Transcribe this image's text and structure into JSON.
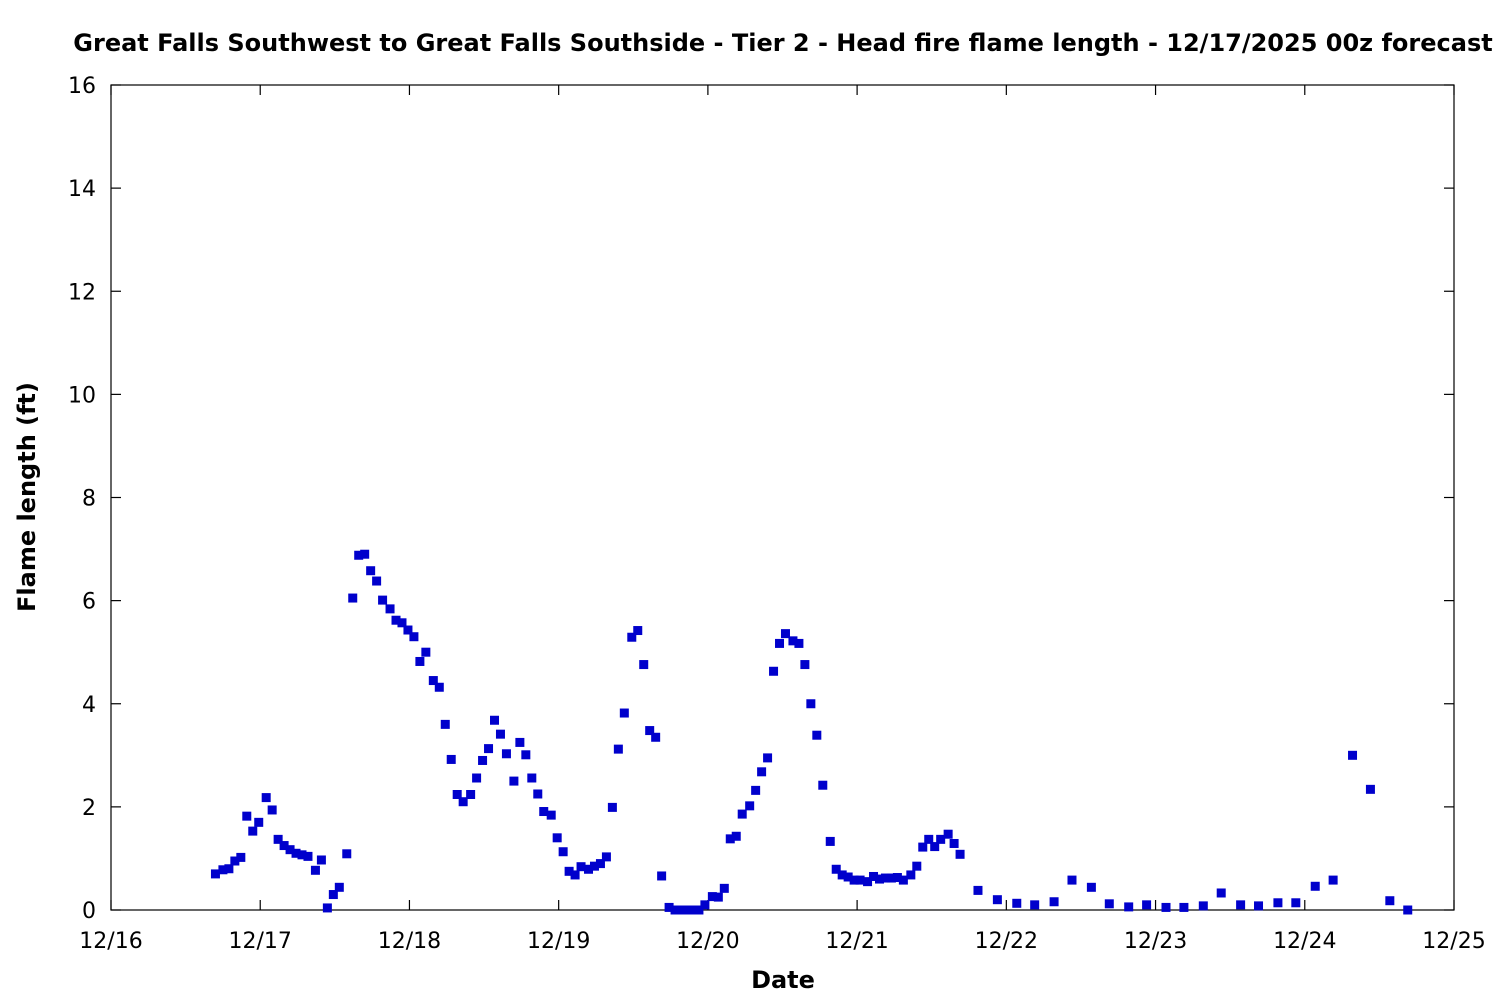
{
  "chart_data": {
    "type": "scatter",
    "title": "Great Falls Southwest to Great Falls Southside - Tier 2 - Head fire flame length - 12/17/2025 00z forecast",
    "xlabel": "Date",
    "ylabel": "Flame length (ft)",
    "xlim": [
      16,
      25
    ],
    "ylim": [
      0,
      16
    ],
    "x_ticks": [
      16,
      17,
      18,
      19,
      20,
      21,
      22,
      23,
      24,
      25
    ],
    "x_tick_labels": [
      "12/16",
      "12/17",
      "12/18",
      "12/19",
      "12/20",
      "12/21",
      "12/22",
      "12/23",
      "12/24",
      "12/25"
    ],
    "y_ticks": [
      0,
      2,
      4,
      6,
      8,
      10,
      12,
      14,
      16
    ],
    "y_tick_labels": [
      "0",
      "2",
      "4",
      "6",
      "8",
      "10",
      "12",
      "14",
      "16"
    ],
    "grid": false,
    "marker_color": "#0000cc",
    "series": [
      {
        "x": [
          16.7,
          16.75,
          16.79,
          16.83,
          16.87,
          16.91,
          16.95,
          16.99,
          17.04,
          17.08,
          17.12,
          17.16,
          17.2,
          17.24,
          17.28,
          17.32,
          17.37,
          17.41,
          17.45,
          17.49,
          17.53,
          17.58,
          17.62,
          17.66,
          17.7,
          17.74,
          17.78,
          17.82,
          17.87,
          17.91,
          17.95,
          17.99,
          18.03,
          18.07,
          18.11,
          18.16,
          18.2,
          18.24,
          18.28,
          18.32,
          18.36,
          18.41,
          18.45,
          18.49,
          18.53,
          18.57,
          18.61,
          18.65,
          18.7,
          18.74,
          18.78,
          18.82,
          18.86,
          18.9,
          18.95,
          18.99,
          19.03,
          19.07,
          19.11,
          19.15,
          19.2,
          19.24,
          19.28,
          19.32,
          19.36,
          19.4,
          19.44,
          19.49,
          19.53,
          19.57,
          19.61,
          19.65,
          19.69,
          19.74,
          19.78,
          19.82,
          19.86,
          19.9,
          19.94,
          19.98,
          20.03,
          20.07,
          20.11,
          20.15,
          20.19,
          20.23,
          20.28,
          20.32,
          20.36,
          20.4,
          20.44,
          20.48,
          20.52,
          20.57,
          20.61,
          20.65,
          20.69,
          20.73,
          20.77,
          20.82,
          20.86,
          20.9,
          20.94,
          20.98,
          21.02,
          21.07,
          21.11,
          21.15,
          21.19,
          21.23,
          21.27,
          21.31,
          21.36,
          21.4,
          21.44,
          21.48,
          21.52,
          21.56,
          21.61,
          21.65,
          21.69,
          21.81,
          21.94,
          22.07,
          22.19,
          22.32,
          22.44,
          22.57,
          22.69,
          22.82,
          22.94,
          23.07,
          23.19,
          23.32,
          23.44,
          23.57,
          23.69,
          23.82,
          23.94,
          24.07,
          24.19,
          24.32,
          24.44,
          24.57,
          24.69
        ],
        "y": [
          0.7,
          0.78,
          0.8,
          0.95,
          1.02,
          1.82,
          1.53,
          1.7,
          2.18,
          1.94,
          1.37,
          1.25,
          1.17,
          1.1,
          1.07,
          1.04,
          0.77,
          0.97,
          0.04,
          0.3,
          0.44,
          1.09,
          6.05,
          6.88,
          6.9,
          6.58,
          6.38,
          6.01,
          5.84,
          5.62,
          5.57,
          5.43,
          5.3,
          4.82,
          5.0,
          4.45,
          4.32,
          3.6,
          2.92,
          2.24,
          2.1,
          2.24,
          2.56,
          2.9,
          3.13,
          3.68,
          3.41,
          3.03,
          2.5,
          3.25,
          3.01,
          2.56,
          2.25,
          1.91,
          1.84,
          1.4,
          1.13,
          0.75,
          0.68,
          0.84,
          0.79,
          0.85,
          0.9,
          1.03,
          1.99,
          3.12,
          3.82,
          5.29,
          5.42,
          4.76,
          3.48,
          3.35,
          0.66,
          0.05,
          0.0,
          0.0,
          0.0,
          0.0,
          0.0,
          0.1,
          0.26,
          0.25,
          0.42,
          1.38,
          1.43,
          1.86,
          2.02,
          2.32,
          2.68,
          2.95,
          4.63,
          5.17,
          5.36,
          5.22,
          5.17,
          4.76,
          4.0,
          3.39,
          2.42,
          1.33,
          0.79,
          0.68,
          0.64,
          0.58,
          0.58,
          0.55,
          0.65,
          0.6,
          0.62,
          0.62,
          0.63,
          0.58,
          0.68,
          0.85,
          1.22,
          1.37,
          1.23,
          1.37,
          1.47,
          1.29,
          1.08,
          0.38,
          0.2,
          0.13,
          0.1,
          0.16,
          0.58,
          0.44,
          0.12,
          0.06,
          0.1,
          0.05,
          0.05,
          0.08,
          0.33,
          0.1,
          0.08,
          0.14,
          0.14,
          0.46,
          0.58,
          3.0,
          2.34,
          0.18,
          0.0
        ]
      }
    ]
  }
}
